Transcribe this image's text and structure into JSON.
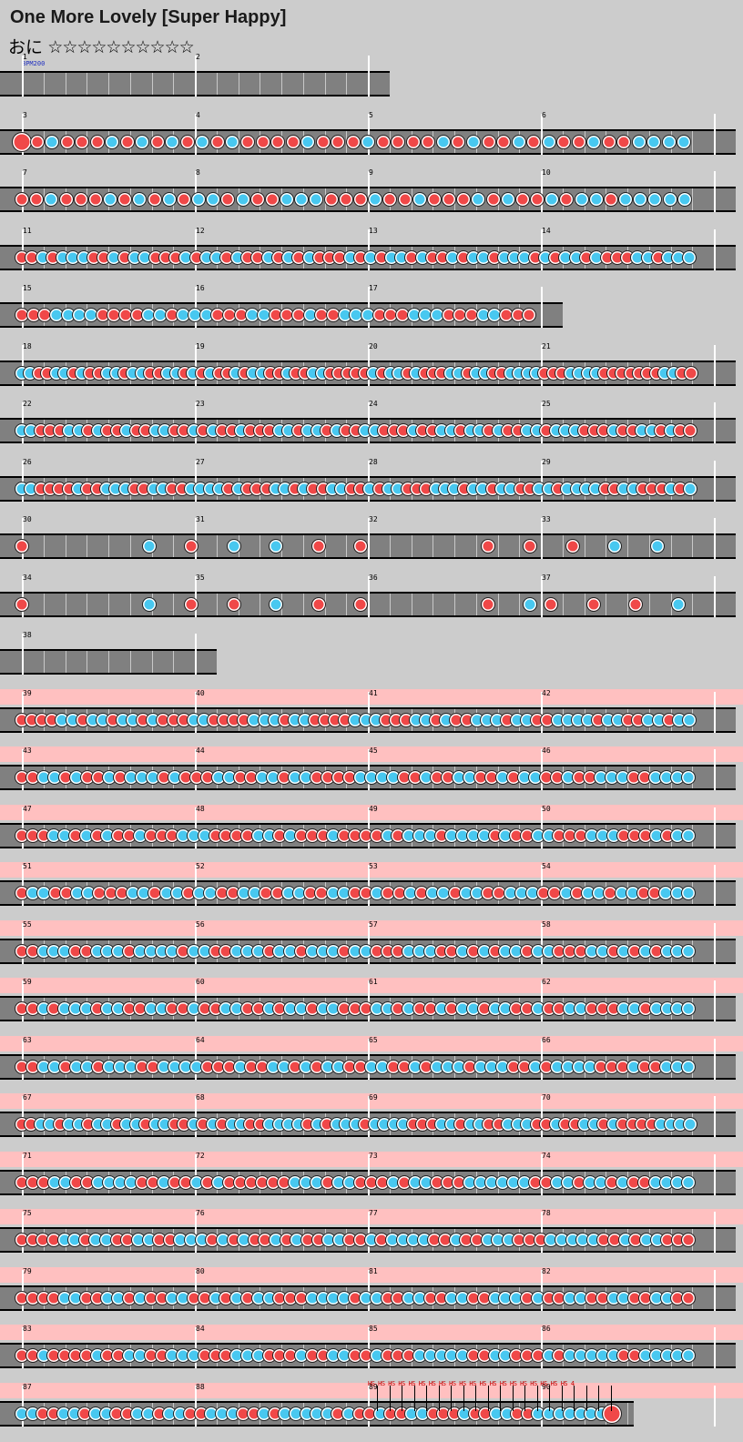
{
  "header": {
    "title": "One More Lovely [Super Happy]",
    "difficulty": "おに",
    "stars": "☆☆☆☆☆☆☆☆☆☆"
  },
  "bpm_label": "BPM200",
  "roll_label": "HS HS HS HS HS HS HS HS HS HS HS HS HS HS HS HS HS HS HS HS 4",
  "colors": {
    "don": "#f04848",
    "ka": "#48c8f0",
    "lane": "#808080",
    "gogo": "#ffc0c0",
    "background": "#cccccc"
  },
  "rows": [
    {
      "measures": [
        1,
        2
      ],
      "lane_end": 428,
      "gogo": false,
      "notes": ""
    },
    {
      "measures": [
        3,
        4,
        5,
        6
      ],
      "gogo": false,
      "notes": "Drkrrrdrkrdrkrkrrrrkrrrkrrrrkrkrrkrkrrkrrkkkk"
    },
    {
      "measures": [
        7,
        8,
        9,
        10
      ],
      "gogo": false,
      "notes": "rrkrrrkrkrkrkkrkrrkkkrrrkrrkrrrkrkrrkrkkrkkkkk"
    },
    {
      "measures": [
        11,
        12,
        13,
        14
      ],
      "gogo": false,
      "notes": "rrkrkkkrrkrkkrrrkrkkrkrrkrkrkrrrkrkrkkrkrrkrkkrkkkrkrkkrkrrrkkrkkk"
    },
    {
      "measures": [
        15,
        16,
        17
      ],
      "lane_end": 618,
      "gogo": false,
      "notes": "rrrkkkkrrrrkkrkkkrrrkkrrrkrrkkkrrrkkkrrrkkrrr"
    },
    {
      "measures": [
        18,
        19,
        20,
        21
      ],
      "gogo": false,
      "notes": "kkrrkkrkrrkkrkkrrkkrkrkrrkrkkrrkrrkkrrrrrkrkkrkrrrkkrkkrrkkkkrrrkkkkrrrrrrrkkrr"
    },
    {
      "measures": [
        22,
        23,
        24,
        25
      ],
      "gogo": false,
      "notes": "kkrrrkkrkrrkrrkkrrkrkrrkrrrkkrkkrkrrkkrrrkrrkkrkkrkrrkkrkkkrrrkrrkkrkrr"
    },
    {
      "measures": [
        26,
        27,
        28,
        29
      ],
      "gogo": false,
      "notes": "kkrrrrkrrkkkrrkkrrkkkkrkrrrkkrkrrkkrrkrkkrrrkkkrkkrkkrrkkrkkkkrrkkrrrkrk"
    },
    {
      "measures": [
        30,
        31,
        32,
        33
      ],
      "gogo": false,
      "notes": "r.....k.r.k.k.r.r.....r.r.r.k.k."
    },
    {
      "measures": [
        34,
        35,
        36,
        37
      ],
      "gogo": false,
      "notes": "r.....k.r.r.k.r.r.....r.kr.r.r.k"
    },
    {
      "measures": [
        38
      ],
      "lane_end": 238,
      "gogo": false,
      "notes": ""
    },
    {
      "measures": [
        39,
        40,
        41,
        42
      ],
      "gogo": true,
      "notes": "rrrrkkrkkrkkrkrrrkkrrrrkkkrkkrrrrkkkrrrkkrkrrkkkrkkrrkkkkrkkrrkkrkk"
    },
    {
      "measures": [
        43,
        44,
        45,
        46
      ],
      "gogo": true,
      "notes": "rrkkrkrrkrkkkrkrrrkkrrkkrkkrrrrkkkkrrkrrkkrrkrkkrrkrrkkkrrkkkk"
    },
    {
      "measures": [
        47,
        48,
        49,
        50
      ],
      "gogo": true,
      "notes": "rrrkkrkrkrrkrrrkkkrrrrkkrkrrrkrrrrkrkkkrkkkkrkrrkkrrrkkkrrrkrkk"
    },
    {
      "measures": [
        51,
        52,
        53,
        54
      ],
      "gogo": true,
      "notes": "rkkrrkkrrrkkrkkrkkrrkkrrkkrrkkrrkrrkrkkrkkrrkkkrrkrkkrkkrrkkk"
    },
    {
      "measures": [
        55,
        56,
        57,
        58
      ],
      "gogo": true,
      "notes": "rrkkkrrkkkrkkkkrkkrrkkkrkkrkkkrkkrrrkkkrrkrkrkkrkkrrrkkrkrkrkkk"
    },
    {
      "measures": [
        59,
        60,
        61,
        62
      ],
      "gogo": true,
      "notes": "rrkrkkkrkkrrkkrrkrrkkrrkrkkrkkrrrkkrkrrkrkkrkkrrkrrkkrrrkkrkkkk"
    },
    {
      "measures": [
        63,
        64,
        65,
        66
      ],
      "gogo": true,
      "notes": "rrkkrkkrkkkrrkkkkrrrkrrkkrkrkkrrkkrrkrkkkrkkkrrkrkkkkrrrkrrkkk"
    },
    {
      "measures": [
        67,
        68,
        69,
        70
      ],
      "gogo": true,
      "notes": "rrkkrkkrkkrkkrkkrrkrkrkkrrkkkkrkrkkkrkkkkrrrkkrkkrrkkkrrkrrkkrkrrrrkkkk"
    },
    {
      "measures": [
        71,
        72,
        73,
        74
      ],
      "gogo": true,
      "notes": "rrrkkrrkkkkrrkrrkrkrrrrrrkkkrkkrrrkrkkrrrkkkkkkrrkkrkkrkrrkkkk"
    },
    {
      "measures": [
        75,
        76,
        77,
        78
      ],
      "gogo": true,
      "notes": "rrrrkkrkkrrkkrrkkkrkrkrrkrkrrkkrrkrkkkkrrkrrkkkrrrkkkkkrrkrkkrrr"
    },
    {
      "measures": [
        79,
        80,
        81,
        82
      ],
      "gogo": true,
      "notes": "rrrrkkrrkkrkrrkkrrkrkrkkrrrkkkkrkkrrkkrrkkrrkkkrkrrkkrrkkrrkkrr"
    },
    {
      "measures": [
        83,
        84,
        85,
        86
      ],
      "gogo": true,
      "notes": "rrkrrrrkrrkkrrkkkrrrkkkrrrkrrkkrrkrrrkkkkkrrkkrrrkrkkkkkrrkkkkk"
    },
    {
      "measures": [
        87,
        88,
        89,
        90
      ],
      "lane_end": 696,
      "gogo": true,
      "notes": "kkrrkkrkkrrkkrkkrrkkkrrkrkkkkkrkrrkrrkkrrrkrrkkrrkkkkkkkR"
    }
  ]
}
